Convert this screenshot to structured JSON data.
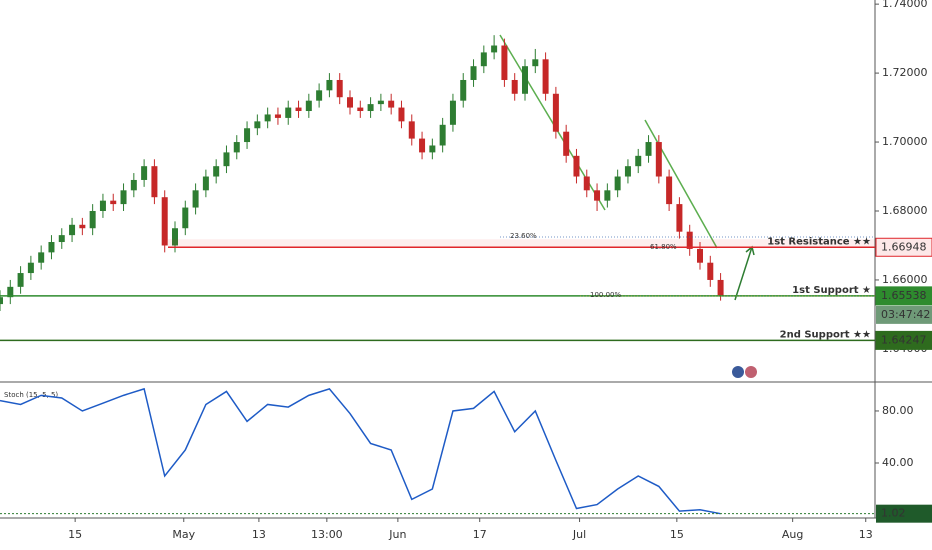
{
  "chart_data": [
    {
      "type": "candlestick",
      "x": [
        0,
        2,
        4,
        6,
        8,
        10,
        12,
        14,
        16,
        18,
        20,
        22,
        24,
        26,
        28,
        30,
        32,
        34,
        36,
        38,
        40,
        42,
        44,
        46,
        48,
        50,
        52,
        54,
        56,
        58,
        60,
        62,
        64,
        66,
        68,
        70,
        72,
        74,
        76,
        78,
        80,
        82,
        84,
        86,
        88,
        90,
        92,
        94,
        96,
        98,
        100,
        102,
        104,
        106,
        108,
        110,
        112,
        114,
        116,
        118,
        120,
        122,
        124,
        126,
        128,
        130,
        132,
        134,
        136,
        138,
        140
      ],
      "open": [
        1.653,
        1.655,
        1.658,
        1.662,
        1.665,
        1.668,
        1.671,
        1.673,
        1.676,
        1.675,
        1.68,
        1.683,
        1.682,
        1.686,
        1.689,
        1.693,
        1.684,
        1.67,
        1.675,
        1.681,
        1.686,
        1.69,
        1.693,
        1.697,
        1.7,
        1.704,
        1.706,
        1.708,
        1.707,
        1.71,
        1.709,
        1.712,
        1.715,
        1.718,
        1.713,
        1.71,
        1.709,
        1.711,
        1.712,
        1.71,
        1.706,
        1.701,
        1.697,
        1.699,
        1.705,
        1.712,
        1.718,
        1.722,
        1.726,
        1.728,
        1.718,
        1.714,
        1.722,
        1.724,
        1.714,
        1.703,
        1.696,
        1.69,
        1.686,
        1.683,
        1.686,
        1.69,
        1.693,
        1.696,
        1.7,
        1.69,
        1.682,
        1.674,
        1.669,
        1.665,
        1.66
      ],
      "high": [
        1.657,
        1.66,
        1.664,
        1.667,
        1.67,
        1.673,
        1.675,
        1.678,
        1.678,
        1.682,
        1.685,
        1.685,
        1.688,
        1.691,
        1.695,
        1.695,
        1.686,
        1.677,
        1.683,
        1.688,
        1.692,
        1.695,
        1.699,
        1.702,
        1.706,
        1.708,
        1.71,
        1.71,
        1.712,
        1.712,
        1.714,
        1.717,
        1.72,
        1.72,
        1.715,
        1.712,
        1.713,
        1.714,
        1.714,
        1.712,
        1.708,
        1.703,
        1.701,
        1.707,
        1.714,
        1.72,
        1.724,
        1.728,
        1.731,
        1.73,
        1.72,
        1.724,
        1.727,
        1.726,
        1.716,
        1.705,
        1.698,
        1.692,
        1.688,
        1.688,
        1.692,
        1.695,
        1.698,
        1.702,
        1.702,
        1.692,
        1.684,
        1.676,
        1.671,
        1.667,
        1.662
      ],
      "low": [
        1.651,
        1.653,
        1.656,
        1.66,
        1.663,
        1.666,
        1.669,
        1.671,
        1.673,
        1.673,
        1.678,
        1.68,
        1.68,
        1.684,
        1.687,
        1.682,
        1.668,
        1.668,
        1.673,
        1.679,
        1.684,
        1.688,
        1.691,
        1.695,
        1.698,
        1.702,
        1.704,
        1.705,
        1.705,
        1.707,
        1.707,
        1.71,
        1.713,
        1.711,
        1.708,
        1.707,
        1.707,
        1.709,
        1.708,
        1.704,
        1.699,
        1.695,
        1.695,
        1.697,
        1.703,
        1.71,
        1.716,
        1.72,
        1.724,
        1.716,
        1.712,
        1.712,
        1.72,
        1.712,
        1.701,
        1.694,
        1.688,
        1.684,
        1.68,
        1.681,
        1.684,
        1.688,
        1.691,
        1.694,
        1.688,
        1.68,
        1.672,
        1.667,
        1.663,
        1.658,
        1.654
      ],
      "close": [
        1.655,
        1.658,
        1.662,
        1.665,
        1.668,
        1.671,
        1.673,
        1.676,
        1.675,
        1.68,
        1.683,
        1.682,
        1.686,
        1.689,
        1.693,
        1.684,
        1.67,
        1.675,
        1.681,
        1.686,
        1.69,
        1.693,
        1.697,
        1.7,
        1.704,
        1.706,
        1.708,
        1.707,
        1.71,
        1.709,
        1.712,
        1.715,
        1.718,
        1.713,
        1.71,
        1.709,
        1.711,
        1.712,
        1.71,
        1.706,
        1.701,
        1.697,
        1.699,
        1.705,
        1.712,
        1.718,
        1.722,
        1.726,
        1.728,
        1.718,
        1.714,
        1.722,
        1.724,
        1.714,
        1.703,
        1.696,
        1.69,
        1.686,
        1.683,
        1.686,
        1.69,
        1.693,
        1.696,
        1.7,
        1.69,
        1.682,
        1.674,
        1.669,
        1.665,
        1.66,
        1.65538
      ],
      "up_color": "#2e7d32",
      "down_color": "#c62828",
      "xlim": [
        0,
        170
      ],
      "ylim": [
        1.6304,
        1.7412
      ],
      "yticks": [
        {
          "value": 1.74,
          "label": "1.74000"
        },
        {
          "value": 1.72,
          "label": "1.72000"
        },
        {
          "value": 1.7,
          "label": "1.70000"
        },
        {
          "value": 1.68,
          "label": "1.68000"
        },
        {
          "value": 1.66,
          "label": "1.66000"
        },
        {
          "value": 1.64,
          "label": "1.64000"
        }
      ],
      "levels": [
        {
          "label": "1st Resistance ★★",
          "value": 1.66948,
          "color": "#e0262b"
        },
        {
          "label": "1st Support ★",
          "value": 1.65538,
          "color": "#2e8b2e"
        },
        {
          "label": "2nd Support ★★",
          "value": 1.64247,
          "color": "#2e6b1e"
        }
      ],
      "fib_labels": [
        "23.60%",
        "61.80%",
        "100.00%"
      ],
      "countdown": "03:47:42"
    },
    {
      "type": "line",
      "name": "Stoch (15, 5, 5)",
      "x": [
        0,
        4,
        8,
        12,
        16,
        20,
        24,
        28,
        32,
        36,
        40,
        44,
        48,
        52,
        56,
        60,
        64,
        68,
        72,
        76,
        80,
        84,
        88,
        92,
        96,
        100,
        104,
        108,
        112,
        116,
        120,
        124,
        128,
        132,
        136,
        140
      ],
      "values": [
        88,
        85,
        92,
        90,
        80,
        86,
        92,
        97,
        30,
        50,
        85,
        95,
        72,
        85,
        83,
        92,
        97,
        78,
        55,
        50,
        12,
        20,
        80,
        82,
        95,
        64,
        80,
        42,
        5,
        8,
        20,
        30,
        22,
        3,
        4,
        1.02
      ],
      "color": "#1e5bc6",
      "xlim": [
        0,
        170
      ],
      "ylim": [
        -2.3,
        101.5
      ],
      "yticks": [
        {
          "value": 80,
          "label": "80.00"
        },
        {
          "value": 40,
          "label": "40.00"
        }
      ],
      "xticks": [
        {
          "value": 14.6,
          "label": "15"
        },
        {
          "value": 35.7,
          "label": "May"
        },
        {
          "value": 50.3,
          "label": "13"
        },
        {
          "value": 63.5,
          "label": "13:00"
        },
        {
          "value": 77.3,
          "label": "Jun"
        },
        {
          "value": 93.2,
          "label": "17"
        },
        {
          "value": 112.6,
          "label": "Jul"
        },
        {
          "value": 131.5,
          "label": "15"
        },
        {
          "value": 154,
          "label": "Aug"
        },
        {
          "value": 168.2,
          "label": "13"
        }
      ]
    }
  ]
}
